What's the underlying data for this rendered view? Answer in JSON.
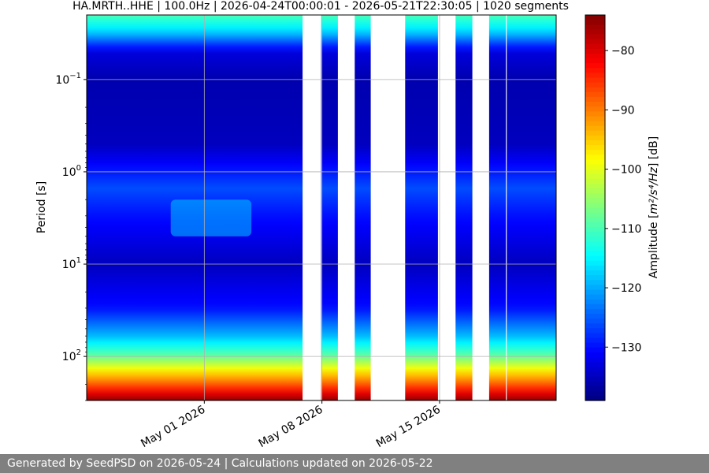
{
  "chart_data": {
    "type": "heatmap",
    "title": "HA.MRTH..HHE | 100.0Hz | 2026-04-24T00:00:01 - 2026-05-21T22:30:05 | 1020 segments",
    "xlabel": "",
    "ylabel": "Period [s]",
    "x_scale": "date",
    "xlim": [
      "2026-04-24T00:00:00",
      "2026-05-21T22:30:00"
    ],
    "x_ticks": [
      "May 01 2026",
      "May 08 2026",
      "May 15 2026"
    ],
    "x_tick_dates": [
      "2026-05-01",
      "2026-05-08",
      "2026-05-15"
    ],
    "y_scale": "log",
    "y_inverted": true,
    "ylim_seconds": [
      0.02,
      300
    ],
    "y_ticks": [
      {
        "base": "10",
        "exp": "−1",
        "value": 0.1
      },
      {
        "base": "10",
        "exp": "0",
        "value": 1
      },
      {
        "base": "10",
        "exp": "1",
        "value": 10
      },
      {
        "base": "10",
        "exp": "2",
        "value": 100
      }
    ],
    "grid": true,
    "colormap": "jet",
    "colorbar": {
      "label_prefix": "Amplitude [",
      "label_math": "m²/s⁴/Hz",
      "label_suffix": "] [dB]",
      "range_db": [
        -139,
        -74
      ],
      "ticks": [
        "−80",
        "−90",
        "−100",
        "−110",
        "−120",
        "−130"
      ],
      "tick_values": [
        -80,
        -90,
        -100,
        -110,
        -120,
        -130
      ]
    },
    "data_coverage_days": [
      [
        0.0,
        12.85
      ],
      [
        13.95,
        14.95
      ],
      [
        15.95,
        16.9
      ],
      [
        18.95,
        20.9
      ],
      [
        21.95,
        22.95
      ],
      [
        23.95,
        24.95
      ],
      [
        25.0,
        27.94
      ]
    ],
    "period_profile": [
      {
        "period_s": 0.02,
        "db": -110
      },
      {
        "period_s": 0.03,
        "db": -117
      },
      {
        "period_s": 0.05,
        "db": -133
      },
      {
        "period_s": 0.1,
        "db": -136
      },
      {
        "period_s": 0.5,
        "db": -135
      },
      {
        "period_s": 1.5,
        "db": -126
      },
      {
        "period_s": 3,
        "db": -130
      },
      {
        "period_s": 10,
        "db": -135
      },
      {
        "period_s": 30,
        "db": -130
      },
      {
        "period_s": 60,
        "db": -119
      },
      {
        "period_s": 100,
        "db": -108
      },
      {
        "period_s": 150,
        "db": -96
      },
      {
        "period_s": 200,
        "db": -88
      },
      {
        "period_s": 300,
        "db": -75
      }
    ],
    "notable_features": [
      {
        "desc": "microseism band",
        "days": [
          5.0,
          9.8
        ],
        "period_s": [
          2.0,
          5.0
        ],
        "db": -118
      }
    ]
  },
  "footer": {
    "text": "Generated by SeedPSD on 2026-05-24 | Calculations updated on 2026-05-22"
  },
  "colors": {
    "footer_bg": "#808080",
    "gridline": "#b0b0b0"
  }
}
